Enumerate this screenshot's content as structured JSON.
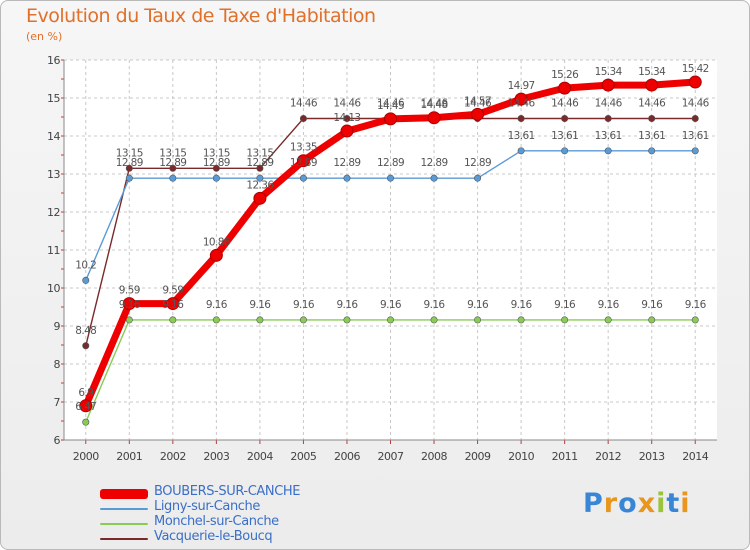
{
  "header": {
    "title": "Evolution du Taux de Taxe d'Habitation",
    "subtitle": "(en %)"
  },
  "brand": {
    "logo_text": "Proxiti",
    "letter_colors": [
      "#3a86d6",
      "#e8961e",
      "#3a86d6",
      "#e8961e",
      "#9bc43c",
      "#3a86d6",
      "#e8961e"
    ]
  },
  "chart_data": {
    "type": "line",
    "x": [
      2000,
      2001,
      2002,
      2003,
      2004,
      2005,
      2006,
      2007,
      2008,
      2009,
      2010,
      2011,
      2012,
      2013,
      2014
    ],
    "ylim": [
      6,
      16
    ],
    "yticks": [
      6,
      7,
      8,
      9,
      10,
      11,
      12,
      13,
      14,
      15,
      16
    ],
    "grid": true,
    "legend_position": "bottom-left",
    "series": [
      {
        "name": "Vacquerie-le-Boucq",
        "color": "#7a2a2a",
        "width": 1.4,
        "values": [
          8.48,
          13.15,
          13.15,
          13.15,
          13.15,
          14.46,
          14.46,
          14.46,
          14.46,
          14.46,
          14.46,
          14.46,
          14.46,
          14.46,
          14.46
        ],
        "labels": [
          "8.48",
          "13.15",
          "13.15",
          "13.15",
          "13.15",
          "14.46",
          "14.46",
          "14.46",
          "14.46",
          "14.46",
          "14.46",
          "14.46",
          "14.46",
          "14.46",
          "14.46"
        ]
      },
      {
        "name": "Monchel-sur-Canche",
        "color": "#88cc55",
        "width": 1.4,
        "values": [
          6.47,
          9.16,
          9.16,
          9.16,
          9.16,
          9.16,
          9.16,
          9.16,
          9.16,
          9.16,
          9.16,
          9.16,
          9.16,
          9.16,
          9.16
        ],
        "labels": [
          "6.47",
          "9.16",
          "9.16",
          "9.16",
          "9.16",
          "9.16",
          "9.16",
          "9.16",
          "9.16",
          "9.16",
          "9.16",
          "9.16",
          "9.16",
          "9.16",
          "9.16"
        ]
      },
      {
        "name": "Ligny-sur-Canche",
        "color": "#5b9bd5",
        "width": 1.4,
        "values": [
          10.2,
          12.89,
          12.89,
          12.89,
          12.89,
          12.89,
          12.89,
          12.89,
          12.89,
          12.89,
          13.61,
          13.61,
          13.61,
          13.61,
          13.61
        ],
        "labels": [
          "10.2",
          "12.89",
          "12.89",
          "12.89",
          "12.89",
          "12.89",
          "12.89",
          "12.89",
          "12.89",
          "12.89",
          "13.61",
          "13.61",
          "13.61",
          "13.61",
          "13.61"
        ]
      },
      {
        "name": "BOUBERS-SUR-CANCHE",
        "color": "#ee0000",
        "width": 7,
        "values": [
          6.9,
          9.59,
          9.59,
          10.86,
          12.36,
          13.35,
          14.13,
          14.45,
          14.48,
          14.57,
          14.97,
          15.26,
          15.34,
          15.34,
          15.42
        ],
        "labels": [
          "6.9",
          "9.59",
          "9.59",
          "10.86",
          "12.36",
          "13.35",
          "14.13",
          "14.45",
          "14.48",
          "14.57",
          "14.97",
          "15.26",
          "15.34",
          "15.34",
          "15.42"
        ]
      }
    ],
    "legend_order": [
      "BOUBERS-SUR-CANCHE",
      "Ligny-sur-Canche",
      "Monchel-sur-Canche",
      "Vacquerie-le-Boucq"
    ]
  }
}
